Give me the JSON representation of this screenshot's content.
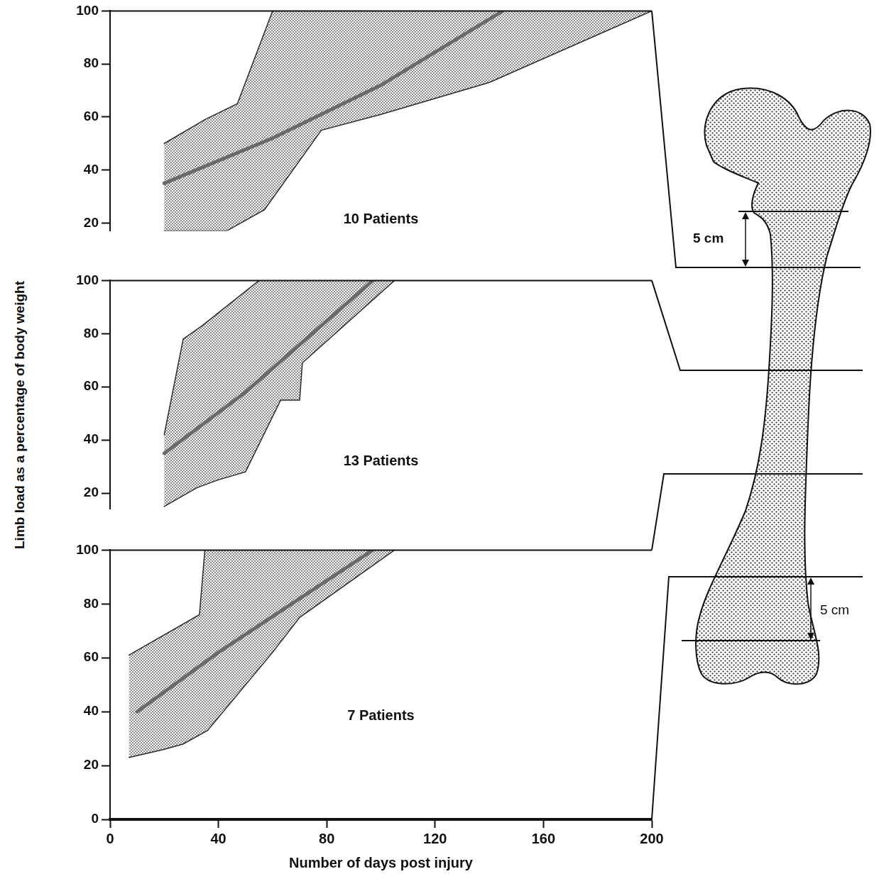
{
  "y_label": "Limb load as a percentage of body weight",
  "femur": {
    "upper_label": "5 cm",
    "lower_label": "5 cm"
  },
  "chart_data": [
    {
      "type": "line",
      "annotation": "10 Patients",
      "xlim": [
        0,
        200
      ],
      "xticks": [
        0,
        40,
        80,
        120,
        160,
        200
      ],
      "ylim": [
        17,
        100
      ],
      "yticks": [
        20,
        40,
        60,
        80,
        100
      ],
      "tick_labels": "y",
      "grid": false,
      "series": [
        {
          "type": "area",
          "color": "#8a8a8a",
          "x": [
            20,
            35,
            47,
            60
          ],
          "values": [
            50,
            59,
            65,
            100
          ]
        },
        {
          "type": "area",
          "color": "#8a8a8a",
          "x": [
            20,
            43,
            57,
            78,
            100,
            140,
            200
          ],
          "values": [
            17,
            17,
            25,
            55,
            61,
            73,
            100
          ]
        },
        {
          "type": "line",
          "color": "#6a6a6a",
          "x": [
            20,
            60,
            100,
            145
          ],
          "values": [
            35,
            52,
            72,
            100
          ]
        }
      ]
    },
    {
      "type": "line",
      "annotation": "13 Patients",
      "xlim": [
        0,
        200
      ],
      "xticks": [
        0,
        40,
        80,
        120,
        160,
        200
      ],
      "ylim": [
        14,
        100
      ],
      "yticks": [
        20,
        40,
        60,
        80,
        100
      ],
      "tick_labels": "y",
      "grid": false,
      "series": [
        {
          "type": "area",
          "color": "#8a8a8a",
          "x": [
            20,
            27,
            34,
            55
          ],
          "values": [
            42,
            78,
            83,
            100
          ]
        },
        {
          "type": "area",
          "color": "#8a8a8a",
          "x": [
            20,
            32,
            40,
            50,
            63,
            70,
            71,
            105
          ],
          "values": [
            15,
            22,
            25,
            28,
            55,
            55,
            69,
            100
          ]
        },
        {
          "type": "line",
          "color": "#6a6a6a",
          "x": [
            20,
            50,
            97
          ],
          "values": [
            35,
            58,
            100
          ]
        }
      ]
    },
    {
      "type": "line",
      "annotation": "7 Patients",
      "x_label": "Number of days post injury",
      "xlim": [
        0,
        200
      ],
      "xticks": [
        0,
        40,
        80,
        120,
        160,
        200
      ],
      "ylim": [
        0,
        100
      ],
      "yticks": [
        0,
        20,
        40,
        60,
        80,
        100
      ],
      "grid": false,
      "series": [
        {
          "type": "area",
          "color": "#8a8a8a",
          "x": [
            7,
            33,
            35
          ],
          "values": [
            61,
            76,
            100
          ]
        },
        {
          "type": "area",
          "color": "#8a8a8a",
          "x": [
            7,
            20,
            27,
            36,
            60,
            70,
            105
          ],
          "values": [
            23,
            26,
            28,
            33,
            62,
            75,
            100
          ]
        },
        {
          "type": "line",
          "color": "#6a6a6a",
          "x": [
            10,
            40,
            97
          ],
          "values": [
            40,
            62,
            100
          ]
        }
      ]
    }
  ]
}
